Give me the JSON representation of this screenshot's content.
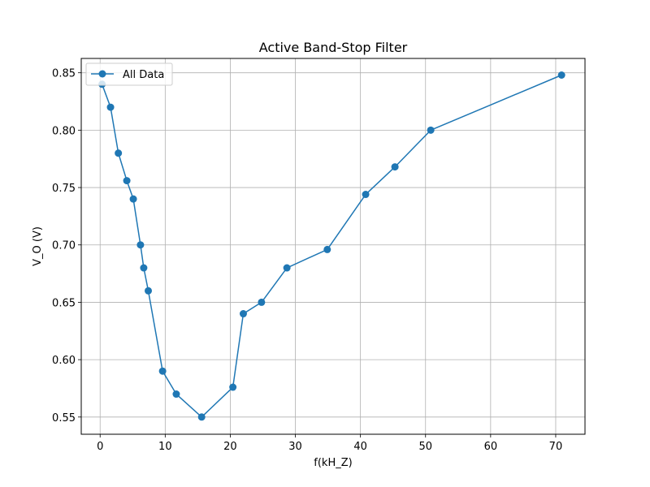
{
  "chart_data": {
    "type": "line",
    "title": "Active Band-Stop Filter",
    "xlabel": "f(kH_Z)",
    "ylabel": "V_O (V)",
    "xlim": [
      -2.9,
      74.5
    ],
    "ylim": [
      0.535,
      0.8625
    ],
    "xticks": [
      0,
      10,
      20,
      30,
      40,
      50,
      60,
      70
    ],
    "yticks": [
      0.55,
      0.6,
      0.65,
      0.7,
      0.75,
      0.8,
      0.85
    ],
    "grid": true,
    "legend_position": "top-left",
    "series": [
      {
        "name": "All Data",
        "color": "#1f77b4",
        "marker": "circle",
        "x": [
          0.3,
          1.6,
          2.8,
          4.1,
          5.1,
          6.2,
          6.7,
          7.4,
          9.6,
          11.7,
          15.6,
          20.4,
          22.0,
          24.8,
          28.7,
          34.9,
          40.8,
          45.3,
          50.8,
          70.9
        ],
        "y": [
          0.84,
          0.82,
          0.78,
          0.756,
          0.74,
          0.7,
          0.68,
          0.66,
          0.59,
          0.57,
          0.55,
          0.576,
          0.64,
          0.65,
          0.68,
          0.696,
          0.744,
          0.768,
          0.8,
          0.848
        ]
      }
    ]
  }
}
